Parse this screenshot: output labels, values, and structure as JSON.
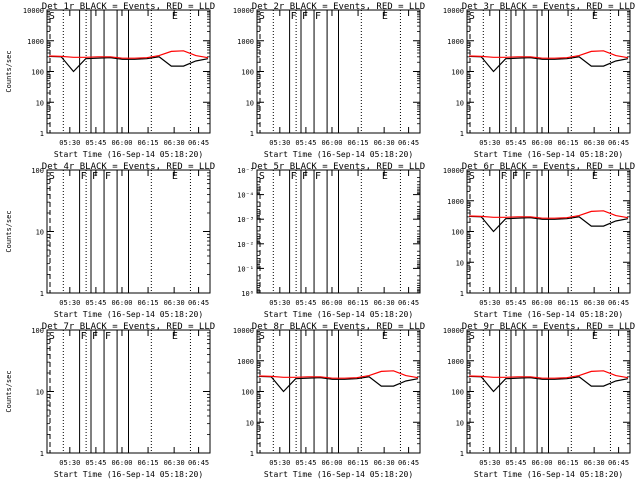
{
  "chart_data": [
    {
      "type": "line",
      "title": "Det 1r BLACK = Events, RED = LLD",
      "ylabel": "Counts/sec",
      "xlabel": "Start Time (16-Sep-14 05:18:20)",
      "y_scale": "log",
      "ylim": [
        1,
        10000
      ],
      "y_ticks": [
        1,
        10,
        100,
        1000,
        10000
      ],
      "y_tick_labels": [
        "1",
        "10",
        "100",
        "1000",
        "10000"
      ],
      "x_ticks": [
        "05:30",
        "05:45",
        "06:00",
        "06:15",
        "06:30",
        "06:45"
      ],
      "has_data": true,
      "markers": [
        {
          "label": "S",
          "pos": "start"
        },
        {
          "label": "E",
          "pos": "end"
        }
      ],
      "series": [
        {
          "color": "#000000",
          "values": [
            310,
            300,
            100,
            260,
            270,
            280,
            250,
            250,
            260,
            300,
            150,
            150,
            220,
            260
          ]
        },
        {
          "color": "#ff0000",
          "values": [
            320,
            310,
            290,
            290,
            300,
            300,
            270,
            270,
            280,
            330,
            450,
            470,
            330,
            280
          ]
        }
      ]
    },
    {
      "type": "line",
      "title": "Det 2r BLACK = Events, RED = LLD",
      "ylabel": "",
      "xlabel": "Start Time (16-Sep-14 05:18:20)",
      "y_scale": "log",
      "ylim": [
        1,
        10000
      ],
      "y_ticks": [
        1,
        10,
        100,
        1000,
        10000
      ],
      "y_tick_labels": [
        "1",
        "10",
        "100",
        "1000",
        "10000"
      ],
      "x_ticks": [
        "05:30",
        "05:45",
        "06:00",
        "06:15",
        "06:30",
        "06:45"
      ],
      "has_data": false,
      "markers": [
        {
          "label": "S",
          "pos": "start"
        },
        {
          "label": "F",
          "pos": "f1"
        },
        {
          "label": "F",
          "pos": "f2"
        },
        {
          "label": "F",
          "pos": "f3"
        },
        {
          "label": "E",
          "pos": "end"
        }
      ],
      "series": []
    },
    {
      "type": "line",
      "title": "Det 3r BLACK = Events, RED = LLD",
      "ylabel": "",
      "xlabel": "Start Time (16-Sep-14 05:18:20)",
      "y_scale": "log",
      "ylim": [
        1,
        10000
      ],
      "y_ticks": [
        1,
        10,
        100,
        1000,
        10000
      ],
      "y_tick_labels": [
        "1",
        "10",
        "100",
        "1000",
        "10000"
      ],
      "x_ticks": [
        "05:30",
        "05:45",
        "06:00",
        "06:15",
        "06:30",
        "06:45"
      ],
      "has_data": true,
      "markers": [
        {
          "label": "S",
          "pos": "start"
        },
        {
          "label": "E",
          "pos": "end"
        }
      ],
      "series": [
        {
          "color": "#000000",
          "values": [
            310,
            300,
            100,
            260,
            270,
            280,
            250,
            250,
            260,
            300,
            150,
            150,
            220,
            260
          ]
        },
        {
          "color": "#ff0000",
          "values": [
            320,
            310,
            290,
            290,
            300,
            300,
            270,
            270,
            280,
            330,
            450,
            470,
            330,
            280
          ]
        }
      ]
    },
    {
      "type": "line",
      "title": "Det 4r BLACK = Events, RED = LLD",
      "ylabel": "Counts/sec",
      "xlabel": "Start Time (16-Sep-14 05:18:20)",
      "y_scale": "log",
      "ylim": [
        1,
        100
      ],
      "y_ticks": [
        1,
        10,
        100
      ],
      "y_tick_labels": [
        "1",
        "10",
        "100"
      ],
      "x_ticks": [
        "05:30",
        "05:45",
        "06:00",
        "06:15",
        "06:30",
        "06:45"
      ],
      "has_data": false,
      "markers": [
        {
          "label": "S",
          "pos": "start"
        },
        {
          "label": "F",
          "pos": "f1"
        },
        {
          "label": "F",
          "pos": "f2"
        },
        {
          "label": "F",
          "pos": "f3"
        },
        {
          "label": "E",
          "pos": "end"
        }
      ],
      "series": []
    },
    {
      "type": "line",
      "title": "Det 5r BLACK = Events, RED = LLD",
      "ylabel": "",
      "xlabel": "Start Time (16-Sep-14 05:18:20)",
      "y_scale": "log",
      "ylim": [
        1,
        1e-05
      ],
      "y_ticks": [
        1,
        0.1,
        0.01,
        0.001,
        0.0001,
        1e-05
      ],
      "y_tick_labels": [
        "10⁰",
        "10⁻¹",
        "10⁻²",
        "10⁻³",
        "10⁻⁴",
        "10⁻⁵"
      ],
      "x_ticks": [
        "05:30",
        "05:45",
        "06:00",
        "06:15",
        "06:30",
        "06:45"
      ],
      "has_data": false,
      "markers": [
        {
          "label": "S",
          "pos": "start"
        },
        {
          "label": "F",
          "pos": "f1"
        },
        {
          "label": "F",
          "pos": "f2"
        },
        {
          "label": "F",
          "pos": "f3"
        },
        {
          "label": "E",
          "pos": "end"
        }
      ],
      "series": []
    },
    {
      "type": "line",
      "title": "Det 6r BLACK = Events, RED = LLD",
      "ylabel": "",
      "xlabel": "Start Time (16-Sep-14 05:18:20)",
      "y_scale": "log",
      "ylim": [
        1,
        10000
      ],
      "y_ticks": [
        1,
        10,
        100,
        1000,
        10000
      ],
      "y_tick_labels": [
        "1",
        "10",
        "100",
        "1000",
        "10000"
      ],
      "x_ticks": [
        "05:30",
        "05:45",
        "06:00",
        "06:15",
        "06:30",
        "06:45"
      ],
      "has_data": true,
      "markers": [
        {
          "label": "S",
          "pos": "start"
        },
        {
          "label": "F",
          "pos": "f1"
        },
        {
          "label": "F",
          "pos": "f2"
        },
        {
          "label": "F",
          "pos": "f3"
        },
        {
          "label": "E",
          "pos": "end"
        }
      ],
      "series": [
        {
          "color": "#000000",
          "values": [
            310,
            300,
            100,
            260,
            270,
            280,
            250,
            250,
            260,
            300,
            150,
            150,
            220,
            260
          ]
        },
        {
          "color": "#ff0000",
          "values": [
            320,
            310,
            290,
            290,
            300,
            300,
            270,
            270,
            280,
            330,
            450,
            470,
            330,
            280
          ]
        }
      ]
    },
    {
      "type": "line",
      "title": "Det 7r BLACK = Events, RED = LLD",
      "ylabel": "Counts/sec",
      "xlabel": "Start Time (16-Sep-14 05:18:20)",
      "y_scale": "log",
      "ylim": [
        1,
        100
      ],
      "y_ticks": [
        1,
        10,
        100
      ],
      "y_tick_labels": [
        "1",
        "10",
        "100"
      ],
      "x_ticks": [
        "05:30",
        "05:45",
        "06:00",
        "06:15",
        "06:30",
        "06:45"
      ],
      "has_data": false,
      "markers": [
        {
          "label": "S",
          "pos": "start"
        },
        {
          "label": "F",
          "pos": "f1"
        },
        {
          "label": "F",
          "pos": "f2"
        },
        {
          "label": "F",
          "pos": "f3"
        },
        {
          "label": "E",
          "pos": "end"
        }
      ],
      "series": []
    },
    {
      "type": "line",
      "title": "Det 8r BLACK = Events, RED = LLD",
      "ylabel": "",
      "xlabel": "Start Time (16-Sep-14 05:18:20)",
      "y_scale": "log",
      "ylim": [
        1,
        10000
      ],
      "y_ticks": [
        1,
        10,
        100,
        1000,
        10000
      ],
      "y_tick_labels": [
        "1",
        "10",
        "100",
        "1000",
        "10000"
      ],
      "x_ticks": [
        "05:30",
        "05:45",
        "06:00",
        "06:15",
        "06:30",
        "06:45"
      ],
      "has_data": true,
      "markers": [
        {
          "label": "S",
          "pos": "start"
        },
        {
          "label": "E",
          "pos": "end"
        }
      ],
      "series": [
        {
          "color": "#000000",
          "values": [
            310,
            300,
            100,
            260,
            270,
            280,
            250,
            250,
            260,
            300,
            150,
            150,
            220,
            260
          ]
        },
        {
          "color": "#ff0000",
          "values": [
            320,
            310,
            290,
            290,
            300,
            300,
            270,
            270,
            280,
            330,
            450,
            470,
            330,
            280
          ]
        }
      ]
    },
    {
      "type": "line",
      "title": "Det 9r BLACK = Events, RED = LLD",
      "ylabel": "",
      "xlabel": "Start Time (16-Sep-14 05:18:20)",
      "y_scale": "log",
      "ylim": [
        1,
        10000
      ],
      "y_ticks": [
        1,
        10,
        100,
        1000,
        10000
      ],
      "y_tick_labels": [
        "1",
        "10",
        "100",
        "1000",
        "10000"
      ],
      "x_ticks": [
        "05:30",
        "05:45",
        "06:00",
        "06:15",
        "06:30",
        "06:45"
      ],
      "has_data": true,
      "markers": [
        {
          "label": "S",
          "pos": "start"
        },
        {
          "label": "E",
          "pos": "end"
        }
      ],
      "series": [
        {
          "color": "#000000",
          "values": [
            310,
            300,
            100,
            260,
            270,
            280,
            250,
            250,
            260,
            300,
            150,
            150,
            220,
            260
          ]
        },
        {
          "color": "#ff0000",
          "values": [
            320,
            310,
            290,
            290,
            300,
            300,
            270,
            270,
            280,
            330,
            450,
            470,
            330,
            280
          ]
        }
      ]
    }
  ]
}
